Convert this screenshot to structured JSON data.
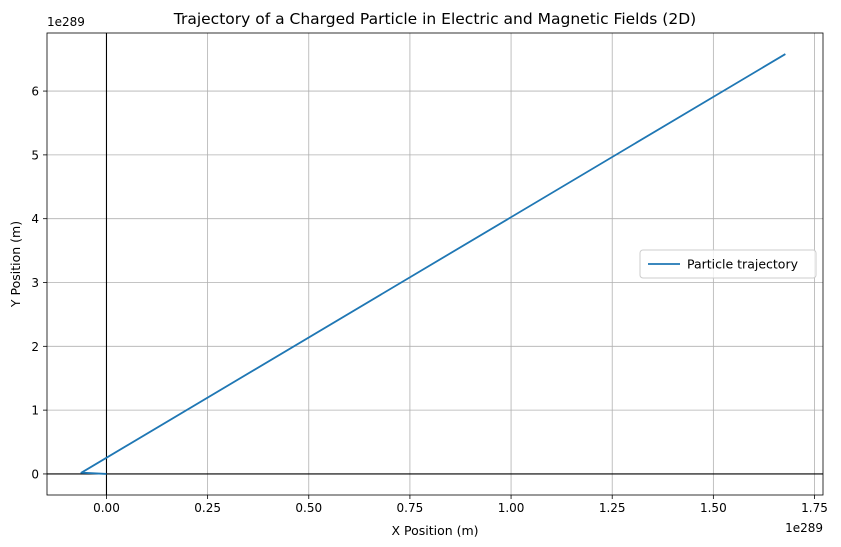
{
  "chart_data": {
    "type": "line",
    "title": "Trajectory of a Charged Particle in Electric and Magnetic Fields (2D)",
    "xlabel": "X Position (m)",
    "ylabel": "Y Position (m)",
    "x_offset_label": "1e289",
    "y_offset_label": "1e289",
    "xlim": [
      -0.147,
      1.771
    ],
    "ylim": [
      -0.33,
      6.91
    ],
    "xticks": [
      0.0,
      0.25,
      0.5,
      0.75,
      1.0,
      1.25,
      1.5,
      1.75
    ],
    "xtick_labels": [
      "0.00",
      "0.25",
      "0.50",
      "0.75",
      "1.00",
      "1.25",
      "1.50",
      "1.75"
    ],
    "yticks": [
      0,
      1,
      2,
      3,
      4,
      5,
      6
    ],
    "ytick_labels": [
      "0",
      "1",
      "2",
      "3",
      "4",
      "5",
      "6"
    ],
    "grid": true,
    "legend_position": "center-right",
    "axhline": 0,
    "axvline": 0,
    "series": [
      {
        "name": "Particle trajectory",
        "color": "#1f77b4",
        "x": [
          0.0,
          -0.062,
          1.678
        ],
        "y": [
          0.0,
          0.02,
          6.58
        ]
      }
    ]
  }
}
